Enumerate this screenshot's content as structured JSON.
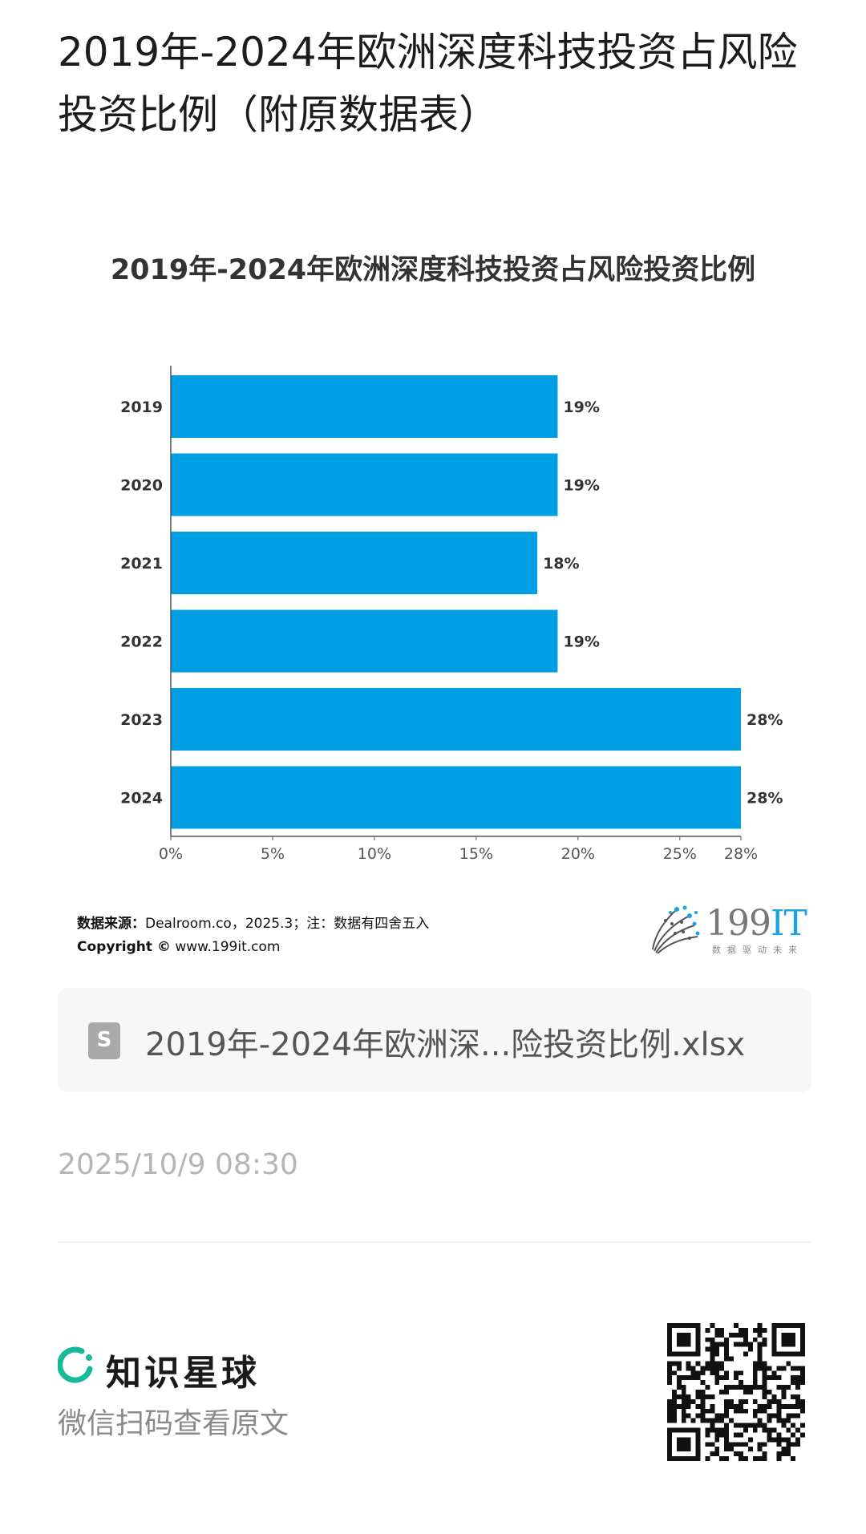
{
  "page": {
    "title": "2019年-2024年欧洲深度科技投资占风险投资比例（附原数据表）"
  },
  "chart_data": {
    "type": "bar",
    "orientation": "horizontal",
    "title": "2019年-2024年欧洲深度科技投资占风险投资比例",
    "categories": [
      "2019",
      "2020",
      "2021",
      "2022",
      "2023",
      "2024"
    ],
    "values": [
      19,
      19,
      18,
      19,
      28,
      28
    ],
    "data_labels": [
      "19%",
      "19%",
      "18%",
      "19%",
      "28%",
      "28%"
    ],
    "xlim": [
      0,
      28
    ],
    "x_ticks": [
      0,
      5,
      10,
      15,
      20,
      25,
      28
    ],
    "x_tick_labels": [
      "0%",
      "5%",
      "10%",
      "15%",
      "20%",
      "25%",
      "28%"
    ],
    "bar_color": "#009fe3",
    "grid": false,
    "legend": "none"
  },
  "source": {
    "label": "数据来源：",
    "text": "Dealroom.co，2025.3；注：数据有四舍五入",
    "copyright_label": "Copyright ©",
    "copyright_text": "www.199it.com"
  },
  "logo": {
    "text_num": "199",
    "text_it": "IT",
    "slogan": "数据驱动未来",
    "icon": "dandelion-logo-icon"
  },
  "file": {
    "icon": "spreadsheet-file-icon",
    "icon_glyph": "S",
    "name": "2019年-2024年欧洲深...险投资比例.xlsx"
  },
  "meta": {
    "timestamp": "2025/10/9 08:30"
  },
  "footer": {
    "brand_name": "知识星球",
    "brand_icon": "zhishi-xingqiu-logo-icon",
    "brand_color": "#16b998",
    "hint": "微信扫码查看原文",
    "qr_icon": "qr-code-icon"
  }
}
